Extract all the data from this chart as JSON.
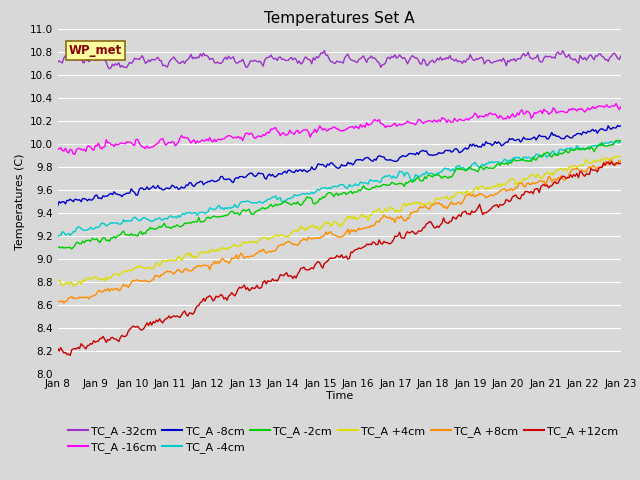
{
  "title": "Temperatures Set A",
  "xlabel": "Time",
  "ylabel": "Temperatures (C)",
  "ylim": [
    8.0,
    11.0
  ],
  "xlim_days": [
    0,
    15
  ],
  "x_tick_labels": [
    "Jan 8",
    "Jan 9",
    "Jan 10",
    "Jan 11",
    "Jan 12",
    "Jan 13",
    "Jan 14",
    "Jan 15",
    "Jan 16",
    "Jan 17",
    "Jan 18",
    "Jan 19",
    "Jan 20",
    "Jan 21",
    "Jan 22",
    "Jan 23"
  ],
  "wp_met_label": "WP_met",
  "series": [
    {
      "label": "TC_A -32cm",
      "color": "#9933CC",
      "start": 10.72,
      "end": 10.75,
      "noise": 0.055,
      "trend": 0.002
    },
    {
      "label": "TC_A -16cm",
      "color": "#FF00FF",
      "start": 9.94,
      "end": 10.33,
      "noise": 0.045,
      "trend": 0.026
    },
    {
      "label": "TC_A -8cm",
      "color": "#0000CC",
      "start": 9.49,
      "end": 10.15,
      "noise": 0.038,
      "trend": 0.044
    },
    {
      "label": "TC_A -4cm",
      "color": "#00CCCC",
      "start": 9.22,
      "end": 10.02,
      "noise": 0.035,
      "trend": 0.053
    },
    {
      "label": "TC_A -2cm",
      "color": "#00CC00",
      "start": 9.1,
      "end": 10.02,
      "noise": 0.033,
      "trend": 0.061
    },
    {
      "label": "TC_A +4cm",
      "color": "#DDDD00",
      "start": 8.75,
      "end": 9.9,
      "noise": 0.04,
      "trend": 0.076
    },
    {
      "label": "TC_A +8cm",
      "color": "#FF8C00",
      "start": 8.62,
      "end": 9.85,
      "noise": 0.04,
      "trend": 0.082
    },
    {
      "label": "TC_A +12cm",
      "color": "#CC0000",
      "start": 8.17,
      "end": 9.85,
      "noise": 0.05,
      "trend": 0.113
    }
  ],
  "n_points": 360,
  "bg_color": "#D8D8D8",
  "plot_bg": "#D8D8D8",
  "grid_color": "#FFFFFF",
  "title_fontsize": 11,
  "legend_fontsize": 8,
  "tick_fontsize": 7.5,
  "ylabel_fontsize": 8,
  "xlabel_fontsize": 8
}
